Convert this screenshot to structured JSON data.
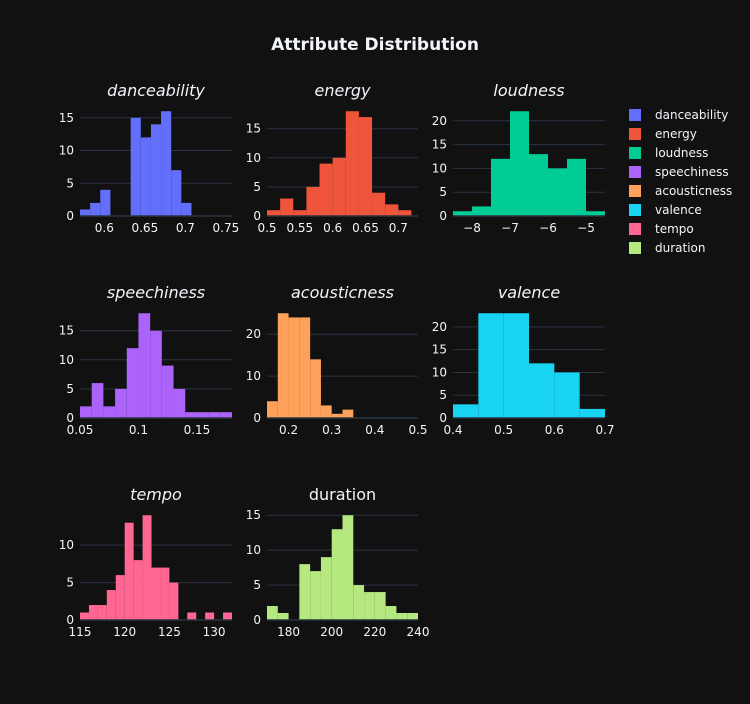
{
  "title": "Attribute Distribution",
  "colors": {
    "background": "#111111",
    "grid": "#283442",
    "text": "#f2f5fa"
  },
  "legend": {
    "placement": "right",
    "items": [
      {
        "name": "danceability",
        "color": "#636efa"
      },
      {
        "name": "energy",
        "color": "#EF553B"
      },
      {
        "name": "loudness",
        "color": "#00cc96"
      },
      {
        "name": "speechiness",
        "color": "#ab63fa"
      },
      {
        "name": "acousticness",
        "color": "#FFA15A"
      },
      {
        "name": "valence",
        "color": "#19d3f3"
      },
      {
        "name": "tempo",
        "color": "#FF6692"
      },
      {
        "name": "duration",
        "color": "#B6E880"
      }
    ]
  },
  "chart_data": [
    {
      "type": "bar",
      "title": "danceability",
      "italic": true,
      "color": "#636efa",
      "bin_start": 0.57,
      "bin_size": 0.0125,
      "counts": [
        1,
        2,
        4,
        0,
        0,
        15,
        12,
        14,
        16,
        7,
        2
      ],
      "xlim": [
        0.57,
        0.7575
      ],
      "ylim": [
        0,
        16.8
      ],
      "xticks": [
        0.6,
        0.65,
        0.7,
        0.75
      ],
      "yticks": [
        0,
        5,
        10,
        15
      ]
    },
    {
      "type": "bar",
      "title": "energy",
      "italic": true,
      "color": "#EF553B",
      "bin_start": 0.5,
      "bin_size": 0.02,
      "counts": [
        1,
        3,
        1,
        5,
        9,
        10,
        18,
        17,
        4,
        2,
        1
      ],
      "xlim": [
        0.5,
        0.73
      ],
      "ylim": [
        0,
        18.9
      ],
      "xticks": [
        0.5,
        0.55,
        0.6,
        0.65,
        0.7
      ],
      "yticks": [
        0,
        5,
        10,
        15
      ]
    },
    {
      "type": "bar",
      "title": "loudness",
      "italic": true,
      "color": "#00cc96",
      "bin_start": -8.5,
      "bin_size": 0.5,
      "counts": [
        1,
        2,
        12,
        22,
        13,
        10,
        12,
        1
      ],
      "xlim": [
        -8.5,
        -4.5
      ],
      "ylim": [
        0,
        23.1
      ],
      "xticks": [
        -8,
        -7,
        -6,
        -5
      ],
      "yticks": [
        0,
        5,
        10,
        15,
        20
      ]
    },
    {
      "type": "bar",
      "title": "speechiness",
      "italic": true,
      "color": "#ab63fa",
      "bin_start": 0.05,
      "bin_size": 0.01,
      "counts": [
        2,
        6,
        2,
        5,
        12,
        18,
        15,
        9,
        5,
        1,
        1,
        1,
        1
      ],
      "xlim": [
        0.05,
        0.18
      ],
      "ylim": [
        0,
        18.9
      ],
      "xticks": [
        0.05,
        0.1,
        0.15
      ],
      "yticks": [
        0,
        5,
        10,
        15
      ]
    },
    {
      "type": "bar",
      "title": "acousticness",
      "italic": true,
      "color": "#FFA15A",
      "bin_start": 0.15,
      "bin_size": 0.025,
      "counts": [
        4,
        25,
        24,
        24,
        14,
        3,
        1,
        2
      ],
      "xlim": [
        0.15,
        0.5
      ],
      "ylim": [
        0,
        26.25
      ],
      "xticks": [
        0.2,
        0.3,
        0.4,
        0.5
      ],
      "yticks": [
        0,
        10,
        20
      ]
    },
    {
      "type": "bar",
      "title": "valence",
      "italic": true,
      "color": "#19d3f3",
      "bin_start": 0.4,
      "bin_size": 0.05,
      "counts": [
        3,
        23,
        23,
        12,
        10,
        2
      ],
      "xlim": [
        0.4,
        0.7
      ],
      "ylim": [
        0,
        24.15
      ],
      "xticks": [
        0.4,
        0.5,
        0.6,
        0.7
      ],
      "yticks": [
        0,
        5,
        10,
        15,
        20
      ]
    },
    {
      "type": "bar",
      "title": "tempo",
      "italic": true,
      "color": "#FF6692",
      "bin_start": 115,
      "bin_size": 1,
      "counts": [
        1,
        2,
        2,
        4,
        6,
        13,
        8,
        14,
        7,
        7,
        5,
        0,
        1,
        0,
        1,
        0,
        1
      ],
      "xlim": [
        115,
        132
      ],
      "ylim": [
        0,
        14.7
      ],
      "xticks": [
        115,
        120,
        125,
        130
      ],
      "yticks": [
        0,
        5,
        10
      ]
    },
    {
      "type": "bar",
      "title": "duration",
      "italic": false,
      "color": "#B6E880",
      "bin_start": 170,
      "bin_size": 5,
      "counts": [
        2,
        1,
        0,
        8,
        7,
        9,
        13,
        15,
        5,
        4,
        4,
        2,
        1,
        1
      ],
      "xlim": [
        170,
        240
      ],
      "ylim": [
        0,
        15.75
      ],
      "xticks": [
        180,
        200,
        220,
        240
      ],
      "yticks": [
        0,
        5,
        10,
        15
      ]
    }
  ]
}
